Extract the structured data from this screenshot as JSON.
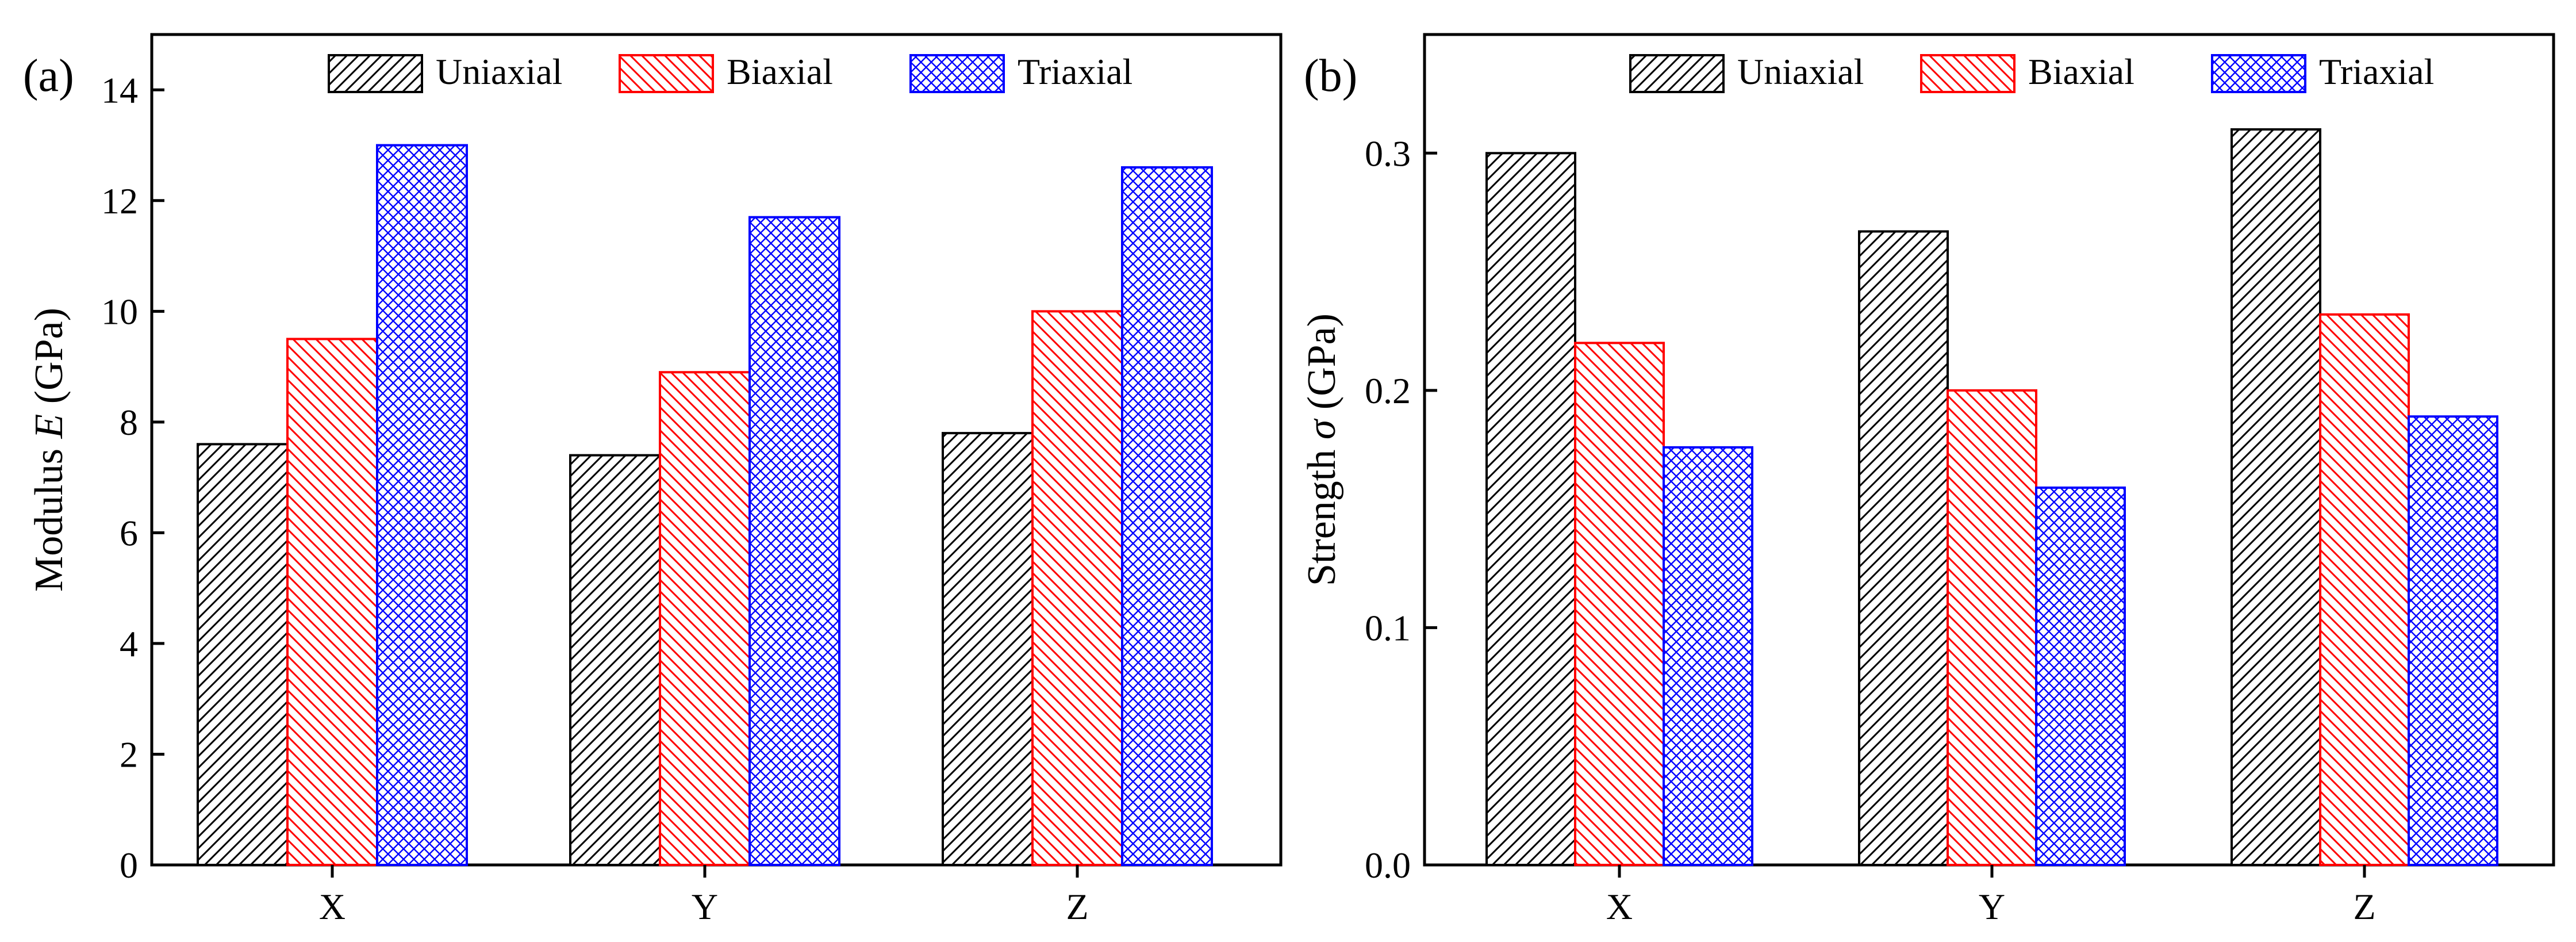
{
  "legend_colors": {
    "Uniaxial": "#000000",
    "Biaxial": "#ff0000",
    "Triaxial": "#0000ff"
  },
  "chart_data": [
    {
      "type": "bar",
      "panel_label": "(a)",
      "title": "",
      "xlabel": "",
      "ylabel_prefix": "Modulus ",
      "ylabel_symbol": "E",
      "ylabel_suffix": " (GPa)",
      "categories": [
        "X",
        "Y",
        "Z"
      ],
      "ylim": [
        0,
        15
      ],
      "yticks": [
        0,
        2,
        4,
        6,
        8,
        10,
        12,
        14
      ],
      "ytick_labels": [
        "0",
        "2",
        "4",
        "6",
        "8",
        "10",
        "12",
        "14"
      ],
      "legend_position": "top",
      "series": [
        {
          "name": "Uniaxial",
          "values": [
            7.6,
            7.4,
            7.8
          ]
        },
        {
          "name": "Biaxial",
          "values": [
            9.5,
            8.9,
            10.0
          ]
        },
        {
          "name": "Triaxial",
          "values": [
            13.0,
            11.7,
            12.6
          ]
        }
      ]
    },
    {
      "type": "bar",
      "panel_label": "(b)",
      "title": "",
      "xlabel": "",
      "ylabel_prefix": "Strength ",
      "ylabel_symbol": "σ",
      "ylabel_suffix": " (GPa)",
      "categories": [
        "X",
        "Y",
        "Z"
      ],
      "ylim": [
        0,
        0.35
      ],
      "yticks": [
        0.0,
        0.1,
        0.2,
        0.3
      ],
      "ytick_labels": [
        "0.0",
        "0.1",
        "0.2",
        "0.3"
      ],
      "legend_position": "top",
      "series": [
        {
          "name": "Uniaxial",
          "values": [
            0.3,
            0.267,
            0.31
          ]
        },
        {
          "name": "Biaxial",
          "values": [
            0.22,
            0.2,
            0.232
          ]
        },
        {
          "name": "Triaxial",
          "values": [
            0.176,
            0.159,
            0.189
          ]
        }
      ]
    }
  ]
}
